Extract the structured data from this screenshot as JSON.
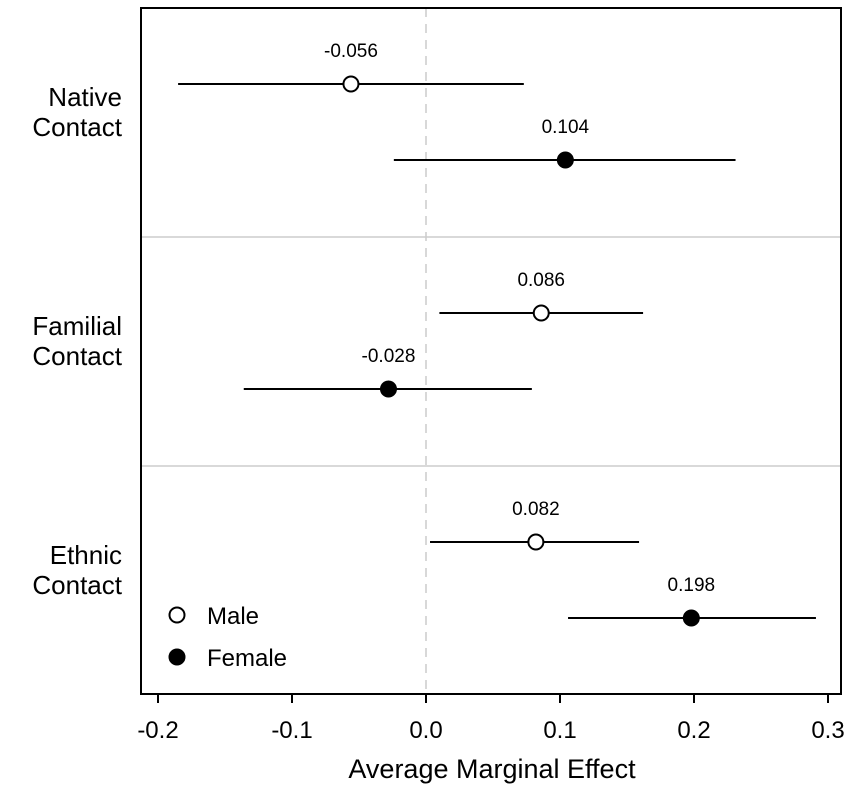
{
  "chart_data": {
    "type": "scatter",
    "subtype": "coefficient-plot-with-confidence-intervals",
    "xlabel": "Average Marginal Effect",
    "ylabel": "",
    "title": "",
    "xlim": [
      -0.215,
      0.32
    ],
    "xticks": [
      -0.2,
      -0.1,
      0.0,
      0.1,
      0.2,
      0.3
    ],
    "xtick_labels": [
      "-0.2",
      "-0.1",
      "0.0",
      "0.1",
      "0.2",
      "0.3"
    ],
    "reference_line": 0,
    "grid": false,
    "legend_position": "bottom-left",
    "groups": [
      {
        "label_lines": [
          "Native",
          "Contact"
        ]
      },
      {
        "label_lines": [
          "Familial",
          "Contact"
        ]
      },
      {
        "label_lines": [
          "Ethnic",
          "Contact"
        ]
      }
    ],
    "series": [
      {
        "name": "Male",
        "marker": "open-circle",
        "points": [
          {
            "group": 0,
            "estimate": -0.056,
            "lower": -0.185,
            "upper": 0.073,
            "label": "-0.056"
          },
          {
            "group": 1,
            "estimate": 0.086,
            "lower": 0.01,
            "upper": 0.162,
            "label": "0.086"
          },
          {
            "group": 2,
            "estimate": 0.082,
            "lower": 0.003,
            "upper": 0.159,
            "label": "0.082"
          }
        ]
      },
      {
        "name": "Female",
        "marker": "filled-circle",
        "points": [
          {
            "group": 0,
            "estimate": 0.104,
            "lower": -0.024,
            "upper": 0.231,
            "label": "0.104"
          },
          {
            "group": 1,
            "estimate": -0.028,
            "lower": -0.136,
            "upper": 0.079,
            "label": "-0.028"
          },
          {
            "group": 2,
            "estimate": 0.198,
            "lower": 0.106,
            "upper": 0.291,
            "label": "0.198"
          }
        ]
      }
    ]
  },
  "colors": {
    "line": "#000000",
    "frame": "#000000",
    "separator": "#d9d9d9",
    "zero_line": "#cccccc",
    "open_marker_fill": "#ffffff",
    "filled_marker_fill": "#000000"
  }
}
